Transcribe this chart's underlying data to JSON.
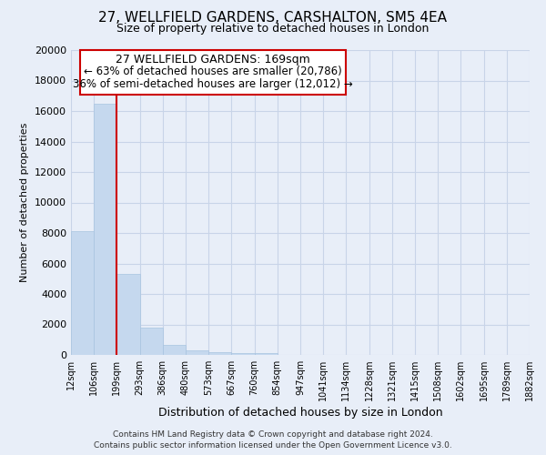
{
  "title": "27, WELLFIELD GARDENS, CARSHALTON, SM5 4EA",
  "subtitle": "Size of property relative to detached houses in London",
  "xlabel": "Distribution of detached houses by size in London",
  "ylabel": "Number of detached properties",
  "bin_labels": [
    "12sqm",
    "106sqm",
    "199sqm",
    "293sqm",
    "386sqm",
    "480sqm",
    "573sqm",
    "667sqm",
    "760sqm",
    "854sqm",
    "947sqm",
    "1041sqm",
    "1134sqm",
    "1228sqm",
    "1321sqm",
    "1415sqm",
    "1508sqm",
    "1602sqm",
    "1695sqm",
    "1789sqm",
    "1882sqm"
  ],
  "bar_heights": [
    8100,
    16500,
    5300,
    1800,
    650,
    300,
    200,
    100,
    100,
    0,
    0,
    0,
    0,
    0,
    0,
    0,
    0,
    0,
    0,
    0
  ],
  "bar_color": "#c5d8ee",
  "bar_edge_color": "#a8c4e0",
  "highlight_color": "#cc0000",
  "highlight_bar_index": 1,
  "ylim": [
    0,
    20000
  ],
  "yticks": [
    0,
    2000,
    4000,
    6000,
    8000,
    10000,
    12000,
    14000,
    16000,
    18000,
    20000
  ],
  "annotation_title": "27 WELLFIELD GARDENS: 169sqm",
  "annotation_line1": "← 63% of detached houses are smaller (20,786)",
  "annotation_line2": "36% of semi-detached houses are larger (12,012) →",
  "annotation_box_facecolor": "#ffffff",
  "annotation_box_edgecolor": "#cc0000",
  "footer_line1": "Contains HM Land Registry data © Crown copyright and database right 2024.",
  "footer_line2": "Contains public sector information licensed under the Open Government Licence v3.0.",
  "grid_color": "#c8d4e8",
  "background_color": "#e8eef8",
  "plot_bg_color": "#e8eef8"
}
